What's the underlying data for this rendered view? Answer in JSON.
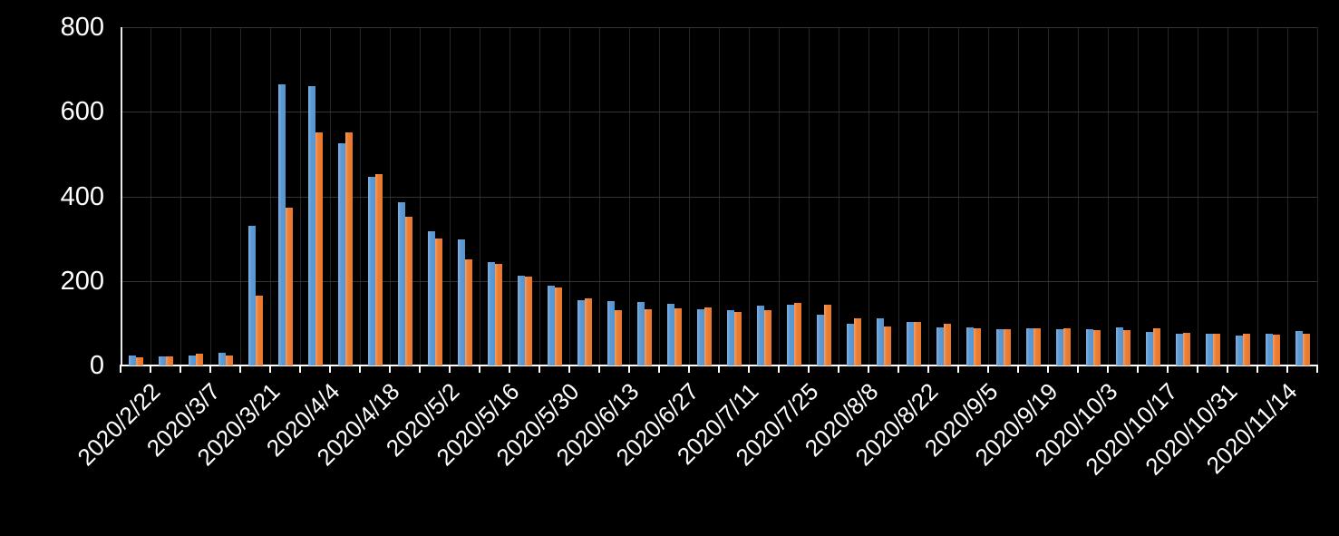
{
  "chart_data": {
    "type": "bar",
    "title": "",
    "xlabel": "",
    "ylabel": "",
    "background_color": "#000000",
    "text_color": "#ffffff",
    "grid": "both",
    "legend": "none",
    "ylim": [
      0,
      800
    ],
    "y_ticks": [
      0,
      200,
      400,
      600,
      800
    ],
    "x_label_every": 2,
    "categories": [
      "2020/2/22",
      "2020/2/29",
      "2020/3/7",
      "2020/3/14",
      "2020/3/21",
      "2020/3/28",
      "2020/4/4",
      "2020/4/11",
      "2020/4/18",
      "2020/4/25",
      "2020/5/2",
      "2020/5/9",
      "2020/5/16",
      "2020/5/23",
      "2020/5/30",
      "2020/6/6",
      "2020/6/13",
      "2020/6/20",
      "2020/6/27",
      "2020/7/4",
      "2020/7/11",
      "2020/7/18",
      "2020/7/25",
      "2020/8/1",
      "2020/8/8",
      "2020/8/15",
      "2020/8/22",
      "2020/8/29",
      "2020/9/5",
      "2020/9/12",
      "2020/9/19",
      "2020/9/26",
      "2020/10/3",
      "2020/10/10",
      "2020/10/17",
      "2020/10/24",
      "2020/10/31",
      "2020/11/7",
      "2020/11/14",
      "2020/11/21"
    ],
    "shown_x_labels": [
      "2020/2/22",
      "2020/3/7",
      "2020/3/21",
      "2020/4/4",
      "2020/4/18",
      "2020/5/2",
      "2020/5/16",
      "2020/5/30",
      "2020/6/13",
      "2020/6/27",
      "2020/7/11",
      "2020/7/25",
      "2020/8/8",
      "2020/8/22",
      "2020/9/5",
      "2020/9/19",
      "2020/10/3",
      "2020/10/17",
      "2020/10/31",
      "2020/11/14"
    ],
    "series": [
      {
        "name": "series-blue",
        "color": "#5b9bd5",
        "values": [
          24,
          22,
          23,
          30,
          330,
          665,
          661,
          526,
          446,
          387,
          318,
          299,
          244,
          213,
          189,
          155,
          153,
          150,
          145,
          134,
          131,
          142,
          143,
          121,
          98,
          112,
          102,
          90,
          91,
          86,
          89,
          85,
          85,
          91,
          80,
          75,
          76,
          71,
          76,
          81
        ]
      },
      {
        "name": "series-orange",
        "color": "#ed7d31",
        "values": [
          20,
          22,
          27,
          24,
          166,
          373,
          551,
          552,
          452,
          352,
          300,
          251,
          241,
          210,
          185,
          158,
          131,
          133,
          136,
          138,
          127,
          131,
          147,
          143,
          112,
          93,
          102,
          99,
          87,
          86,
          87,
          87,
          84,
          84,
          89,
          78,
          76,
          74,
          72,
          74
        ]
      }
    ]
  }
}
